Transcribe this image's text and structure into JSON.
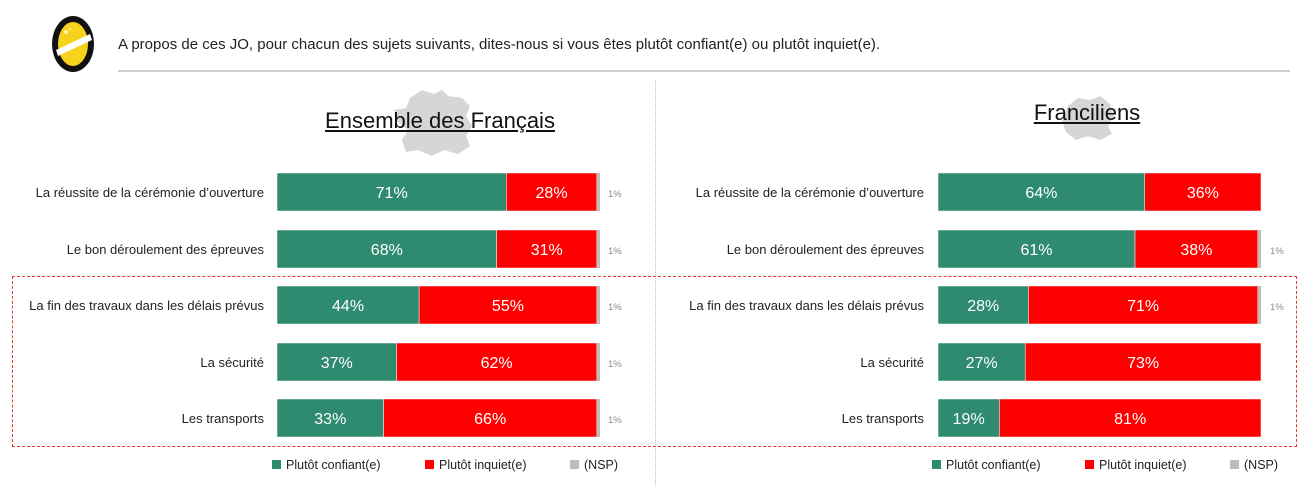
{
  "question": "A propos de ces JO, pour chacun des sujets suivants, dites-nous si vous êtes plutôt confiant(e) ou plutôt inquiet(e).",
  "colors": {
    "confiant": "#2e8b6f",
    "inquiet": "#ff0000",
    "nsp": "#bdbdbd",
    "highlight": "#e53935"
  },
  "chart_data": [
    {
      "type": "bar",
      "orientation": "horizontal-stacked",
      "title": "Ensemble des Français",
      "categories": [
        "La réussite de la cérémonie d’ouverture",
        "Le bon déroulement des épreuves",
        "La fin des travaux dans les délais prévus",
        "La sécurité",
        "Les transports"
      ],
      "series": [
        {
          "name": "Plutôt confiant(e)",
          "values": [
            71,
            68,
            44,
            37,
            33
          ]
        },
        {
          "name": "Plutôt inquiet(e)",
          "values": [
            28,
            31,
            55,
            62,
            66
          ]
        },
        {
          "name": "(NSP)",
          "values": [
            1,
            1,
            1,
            1,
            1
          ]
        }
      ],
      "labels": [
        [
          "71%",
          "28%",
          "1%"
        ],
        [
          "68%",
          "31%",
          "1%"
        ],
        [
          "44%",
          "55%",
          "1%"
        ],
        [
          "37%",
          "62%",
          "1%"
        ],
        [
          "33%",
          "66%",
          "1%"
        ]
      ],
      "legend": [
        "Plutôt confiant(e)",
        "Plutôt inquiet(e)",
        "(NSP)"
      ]
    },
    {
      "type": "bar",
      "orientation": "horizontal-stacked",
      "title": "Franciliens",
      "categories": [
        "La réussite de la cérémonie d’ouverture",
        "Le bon déroulement des épreuves",
        "La fin des travaux dans les délais prévus",
        "La sécurité",
        "Les transports"
      ],
      "series": [
        {
          "name": "Plutôt confiant(e)",
          "values": [
            64,
            61,
            28,
            27,
            19
          ]
        },
        {
          "name": "Plutôt inquiet(e)",
          "values": [
            36,
            38,
            71,
            73,
            81
          ]
        },
        {
          "name": "(NSP)",
          "values": [
            0,
            1,
            1,
            0,
            0
          ]
        }
      ],
      "labels": [
        [
          "64%",
          "36%",
          ""
        ],
        [
          "61%",
          "38%",
          "1%"
        ],
        [
          "28%",
          "71%",
          "1%"
        ],
        [
          "27%",
          "73%",
          ""
        ],
        [
          "19%",
          "81%",
          ""
        ]
      ],
      "legend": [
        "Plutôt confiant(e)",
        "Plutôt inquiet(e)",
        "(NSP)"
      ]
    }
  ]
}
